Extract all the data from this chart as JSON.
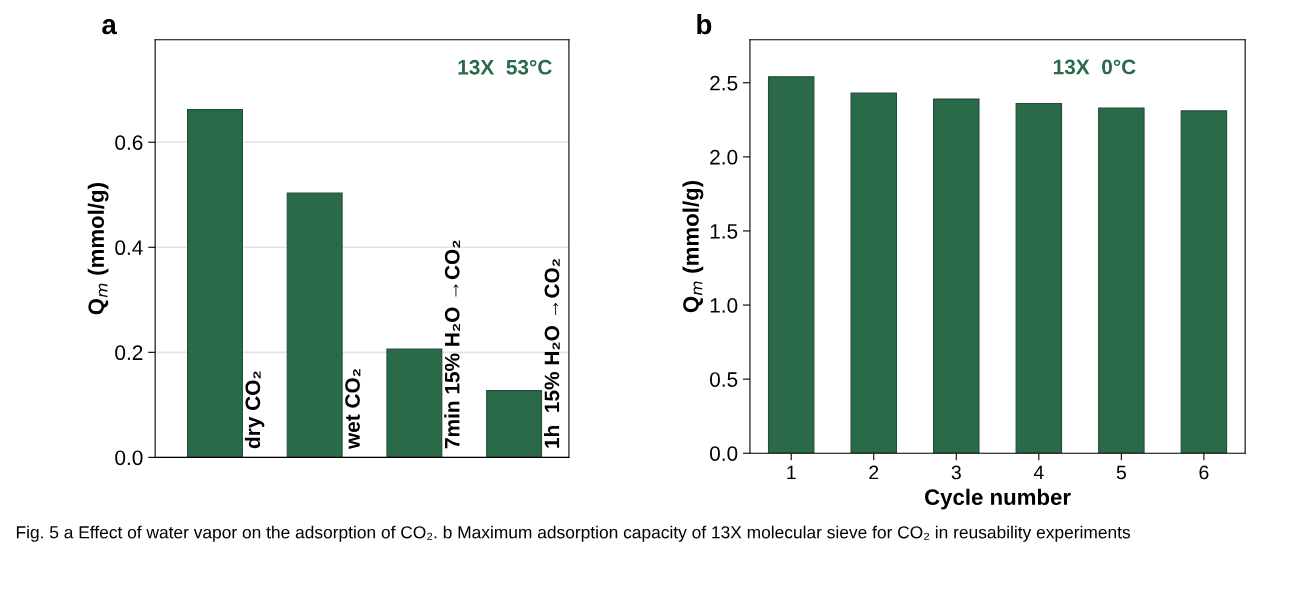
{
  "chart_data": [
    {
      "type": "bar",
      "title": "a",
      "ylabel": "Q$_{m}$ (mmol/g)",
      "categories": [
        "dry CO₂",
        "wet CO₂",
        "7min 15% H₂O →CO₂",
        "1h  15% H₂O →CO₂"
      ],
      "values": [
        0.662,
        0.503,
        0.206,
        0.127
      ],
      "color": "#2a6a48",
      "ylim": [
        0,
        0.795
      ],
      "yticks": [
        {
          "value": 0.0,
          "label": "0.0"
        },
        0.2,
        0.4,
        0.6
      ],
      "grid": "y",
      "annotations": [
        "13X  53°C",
        "Fig. 5 a Effect of water vapor on the adsorption of CO₂. b Maximum adsorption capacity of 13X molecular sieve for CO₂ in reusability experiments"
      ]
    },
    {
      "type": "bar",
      "title": "b",
      "ylabel": "Q$_{m}$ (mmol/g)",
      "xlabel": "Cycle number",
      "categories": [
        "1",
        "2",
        "3",
        "4",
        "5",
        "6"
      ],
      "values": [
        2.54,
        2.43,
        2.39,
        2.36,
        2.33,
        2.31
      ],
      "color": "#2a6a48",
      "ylim": [
        0,
        2.79
      ],
      "yticks": [
        {
          "value": 0.0,
          "label": "0.0"
        },
        0.5,
        {
          "value": 1.0,
          "label": "1.0"
        },
        1.5,
        {
          "value": 2.0,
          "label": "2.0"
        },
        2.5
      ],
      "annotations": [
        "13X  0°C"
      ]
    }
  ]
}
